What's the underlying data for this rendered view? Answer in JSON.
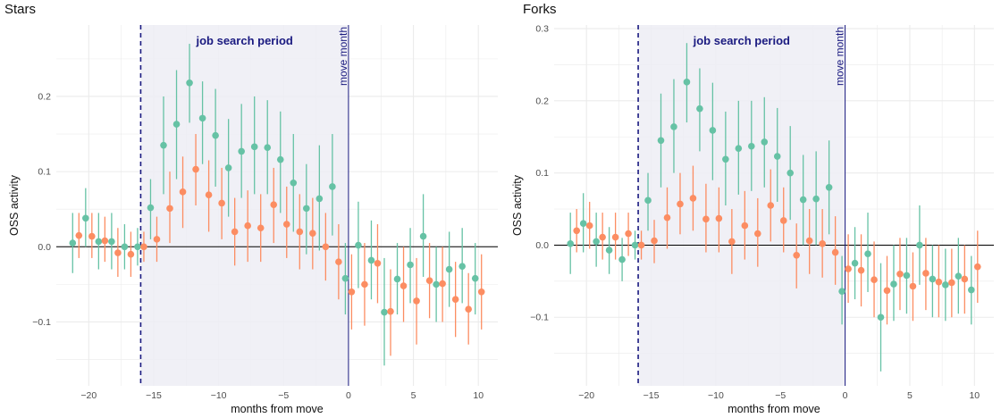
{
  "colors": {
    "series_a": "#66c2a5",
    "series_b": "#fc8d62",
    "band": "#ededf5",
    "marker": "#1a1a80",
    "grid": "#ebebeb",
    "zero_line": "#000000"
  },
  "chart_data": [
    {
      "type": "scatter",
      "title": "Stars",
      "xlabel": "months from move",
      "ylabel": "OSS activity",
      "xlim": [
        -22.5,
        11.5
      ],
      "ylim": [
        -0.185,
        0.295
      ],
      "x_ticks": [
        -20,
        -15,
        -10,
        -5,
        0,
        5,
        10
      ],
      "y_ticks": [
        -0.1,
        0.0,
        0.1,
        0.2
      ],
      "x_tick_labels": [
        "−20",
        "−15",
        "−10",
        "−5",
        "0",
        "5",
        "10"
      ],
      "y_tick_labels": [
        "−0.1",
        "0.0",
        "0.1",
        "0.2"
      ],
      "grid": true,
      "legend": "none",
      "band": {
        "x_start": -16,
        "x_end": 0,
        "label": "job search period"
      },
      "dashed_line_x": -16,
      "move_line": {
        "x": 0,
        "label": "move month"
      },
      "series": [
        {
          "x": [
            -21,
            -20,
            -19,
            -18,
            -17,
            -16,
            -15,
            -14,
            -13,
            -12,
            -11,
            -10,
            -9,
            -8,
            -7,
            -6,
            -5,
            -4,
            -3,
            -2,
            -1,
            0,
            1,
            2,
            3,
            4,
            5,
            6,
            7,
            8,
            9,
            10
          ],
          "y": [
            0.005,
            0.038,
            0.007,
            0.007,
            0.0,
            0.0,
            0.052,
            0.135,
            0.163,
            0.218,
            0.171,
            0.148,
            0.105,
            0.127,
            0.133,
            0.132,
            0.116,
            0.085,
            0.051,
            0.064,
            0.08,
            -0.042,
            0.002,
            -0.018,
            -0.087,
            -0.043,
            -0.024,
            0.014,
            -0.05,
            -0.03,
            -0.026,
            -0.042
          ],
          "lower": [
            -0.035,
            0.0,
            -0.03,
            -0.03,
            -0.03,
            -0.025,
            0.01,
            0.07,
            0.09,
            0.165,
            0.11,
            0.08,
            0.04,
            0.065,
            0.07,
            0.07,
            0.045,
            0.02,
            -0.01,
            -0.005,
            0.015,
            -0.09,
            -0.055,
            -0.07,
            -0.158,
            -0.09,
            -0.075,
            -0.04,
            -0.1,
            -0.08,
            -0.075,
            -0.09
          ],
          "upper": [
            0.045,
            0.078,
            0.045,
            0.045,
            0.03,
            0.025,
            0.09,
            0.2,
            0.235,
            0.27,
            0.22,
            0.21,
            0.17,
            0.19,
            0.2,
            0.195,
            0.18,
            0.15,
            0.11,
            0.135,
            0.15,
            0.005,
            0.06,
            0.035,
            -0.015,
            0.005,
            0.025,
            0.07,
            0.0,
            0.02,
            0.025,
            0.005
          ]
        },
        {
          "x": [
            -21,
            -20,
            -19,
            -18,
            -17,
            -16,
            -15,
            -14,
            -13,
            -12,
            -11,
            -10,
            -9,
            -8,
            -7,
            -6,
            -5,
            -4,
            -3,
            -2,
            -1,
            0,
            1,
            2,
            3,
            4,
            5,
            6,
            7,
            8,
            9,
            10
          ],
          "y": [
            0.015,
            0.014,
            0.008,
            -0.008,
            -0.01,
            0.0,
            0.01,
            0.051,
            0.073,
            0.103,
            0.069,
            0.058,
            0.02,
            0.028,
            0.025,
            0.056,
            0.03,
            0.02,
            0.018,
            0.0,
            -0.02,
            -0.06,
            -0.05,
            -0.022,
            -0.086,
            -0.052,
            -0.072,
            -0.045,
            -0.049,
            -0.07,
            -0.083,
            -0.06
          ],
          "lower": [
            -0.015,
            -0.015,
            -0.02,
            -0.04,
            -0.04,
            -0.02,
            -0.02,
            0.005,
            0.025,
            0.055,
            0.02,
            0.01,
            -0.025,
            -0.02,
            -0.02,
            0.005,
            -0.015,
            -0.03,
            -0.03,
            -0.045,
            -0.07,
            -0.11,
            -0.105,
            -0.075,
            -0.145,
            -0.1,
            -0.13,
            -0.095,
            -0.1,
            -0.12,
            -0.13,
            -0.11
          ],
          "upper": [
            0.045,
            0.045,
            0.04,
            0.025,
            0.02,
            0.02,
            0.04,
            0.1,
            0.12,
            0.15,
            0.115,
            0.105,
            0.065,
            0.075,
            0.07,
            0.105,
            0.08,
            0.07,
            0.065,
            0.045,
            0.03,
            -0.01,
            0.005,
            0.03,
            -0.03,
            0.0,
            -0.015,
            0.005,
            0.0,
            -0.02,
            -0.035,
            -0.01
          ]
        }
      ]
    },
    {
      "type": "scatter",
      "title": "Forks",
      "xlabel": "months from move",
      "ylabel": "OSS activity",
      "xlim": [
        -22.5,
        11.5
      ],
      "ylim": [
        -0.195,
        0.305
      ],
      "x_ticks": [
        -20,
        -15,
        -10,
        -5,
        0,
        5,
        10
      ],
      "y_ticks": [
        -0.1,
        0.0,
        0.1,
        0.2,
        0.3
      ],
      "x_tick_labels": [
        "−20",
        "−15",
        "−10",
        "−5",
        "0",
        "5",
        "10"
      ],
      "y_tick_labels": [
        "−0.1",
        "0.0",
        "0.1",
        "0.2",
        "0.3"
      ],
      "grid": true,
      "legend": "none",
      "band": {
        "x_start": -16,
        "x_end": 0,
        "label": "job search period"
      },
      "dashed_line_x": -16,
      "move_line": {
        "x": 0,
        "label": "move month"
      },
      "series": [
        {
          "x": [
            -21,
            -20,
            -19,
            -18,
            -17,
            -16,
            -15,
            -14,
            -13,
            -12,
            -11,
            -10,
            -9,
            -8,
            -7,
            -6,
            -5,
            -4,
            -3,
            -2,
            -1,
            0,
            1,
            2,
            3,
            4,
            5,
            6,
            7,
            8,
            9,
            10
          ],
          "y": [
            0.002,
            0.03,
            0.005,
            -0.007,
            -0.02,
            0.0,
            0.062,
            0.145,
            0.164,
            0.226,
            0.189,
            0.159,
            0.119,
            0.134,
            0.137,
            0.143,
            0.123,
            0.1,
            0.063,
            0.064,
            0.08,
            -0.064,
            -0.025,
            -0.012,
            -0.1,
            -0.054,
            -0.042,
            0.0,
            -0.047,
            -0.055,
            -0.043,
            -0.062
          ],
          "lower": [
            -0.04,
            -0.01,
            -0.03,
            -0.04,
            -0.05,
            -0.02,
            0.02,
            0.08,
            0.1,
            0.17,
            0.13,
            0.09,
            0.055,
            0.07,
            0.075,
            0.08,
            0.06,
            0.035,
            0.0,
            0.0,
            0.015,
            -0.11,
            -0.075,
            -0.065,
            -0.175,
            -0.105,
            -0.095,
            -0.055,
            -0.1,
            -0.105,
            -0.095,
            -0.11
          ],
          "upper": [
            0.045,
            0.072,
            0.045,
            0.025,
            0.01,
            0.02,
            0.1,
            0.21,
            0.23,
            0.28,
            0.245,
            0.225,
            0.185,
            0.2,
            0.2,
            0.205,
            0.19,
            0.165,
            0.125,
            0.13,
            0.145,
            -0.015,
            0.025,
            0.045,
            -0.025,
            0.0,
            0.01,
            0.055,
            0.0,
            -0.005,
            0.01,
            -0.015
          ]
        },
        {
          "x": [
            -21,
            -20,
            -19,
            -18,
            -17,
            -16,
            -15,
            -14,
            -13,
            -12,
            -11,
            -10,
            -9,
            -8,
            -7,
            -6,
            -5,
            -4,
            -3,
            -2,
            -1,
            0,
            1,
            2,
            3,
            4,
            5,
            6,
            7,
            8,
            9,
            10
          ],
          "y": [
            0.02,
            0.027,
            0.011,
            0.011,
            0.016,
            0.0,
            0.006,
            0.038,
            0.057,
            0.065,
            0.036,
            0.037,
            0.005,
            0.027,
            0.016,
            0.055,
            0.034,
            -0.014,
            0.006,
            0.002,
            -0.01,
            -0.033,
            -0.035,
            -0.048,
            -0.063,
            -0.04,
            -0.057,
            -0.039,
            -0.051,
            -0.052,
            -0.047,
            -0.03
          ],
          "lower": [
            -0.01,
            -0.005,
            -0.02,
            -0.02,
            -0.015,
            -0.02,
            -0.025,
            -0.005,
            0.015,
            0.02,
            -0.01,
            -0.01,
            -0.04,
            -0.02,
            -0.03,
            0.005,
            -0.01,
            -0.06,
            -0.04,
            -0.045,
            -0.055,
            -0.08,
            -0.085,
            -0.1,
            -0.11,
            -0.09,
            -0.105,
            -0.09,
            -0.1,
            -0.1,
            -0.095,
            -0.08
          ],
          "upper": [
            0.05,
            0.06,
            0.045,
            0.045,
            0.045,
            0.02,
            0.035,
            0.08,
            0.1,
            0.11,
            0.085,
            0.08,
            0.05,
            0.075,
            0.065,
            0.105,
            0.08,
            0.03,
            0.05,
            0.05,
            0.04,
            0.015,
            0.015,
            0.005,
            -0.015,
            0.01,
            -0.01,
            0.01,
            0.0,
            -0.005,
            0.0,
            0.02
          ]
        }
      ]
    }
  ]
}
